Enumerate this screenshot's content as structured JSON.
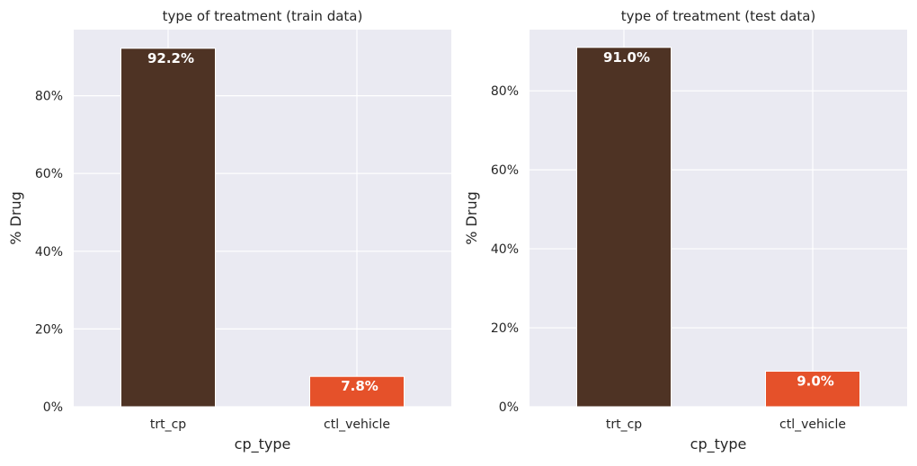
{
  "chart_data": [
    {
      "type": "bar",
      "title": "type of treatment (train data)",
      "xlabel": "cp_type",
      "ylabel": "% Drug",
      "categories": [
        "trt_cp",
        "ctl_vehicle"
      ],
      "values": [
        92.2,
        7.8
      ],
      "value_labels": [
        "92.2%",
        "7.8%"
      ],
      "colors": [
        "#4e3324",
        "#e5512a"
      ],
      "ylim": [
        0,
        97
      ],
      "yticks": [
        0,
        20,
        40,
        60,
        80
      ],
      "ytick_labels": [
        "0%",
        "20%",
        "40%",
        "60%",
        "80%"
      ],
      "grid": true
    },
    {
      "type": "bar",
      "title": "type of treatment (test data)",
      "xlabel": "cp_type",
      "ylabel": "% Drug",
      "categories": [
        "trt_cp",
        "ctl_vehicle"
      ],
      "values": [
        91.0,
        9.0
      ],
      "value_labels": [
        "91.0%",
        "9.0%"
      ],
      "colors": [
        "#4e3324",
        "#e5512a"
      ],
      "ylim": [
        0,
        95.5
      ],
      "yticks": [
        0,
        20,
        40,
        60,
        80
      ],
      "ytick_labels": [
        "0%",
        "20%",
        "40%",
        "60%",
        "80%"
      ],
      "grid": true
    }
  ]
}
